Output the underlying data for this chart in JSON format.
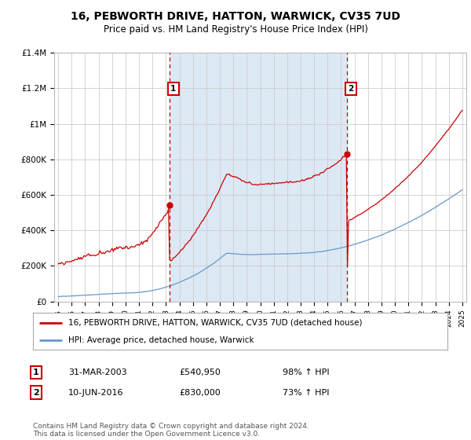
{
  "title": "16, PEBWORTH DRIVE, HATTON, WARWICK, CV35 7UD",
  "subtitle": "Price paid vs. HM Land Registry's House Price Index (HPI)",
  "title_fontsize": 10,
  "subtitle_fontsize": 8.5,
  "legend_line1": "16, PEBWORTH DRIVE, HATTON, WARWICK, CV35 7UD (detached house)",
  "legend_line2": "HPI: Average price, detached house, Warwick",
  "footer": "Contains HM Land Registry data © Crown copyright and database right 2024.\nThis data is licensed under the Open Government Licence v3.0.",
  "marker1_label": "1",
  "marker1_date": "31-MAR-2003",
  "marker1_price": "£540,950",
  "marker1_hpi": "98% ↑ HPI",
  "marker1_year": 2003.25,
  "marker1_value": 540950,
  "marker2_label": "2",
  "marker2_date": "10-JUN-2016",
  "marker2_price": "£830,000",
  "marker2_hpi": "73% ↑ HPI",
  "marker2_year": 2016.44,
  "marker2_value": 830000,
  "price_color": "#cc0000",
  "hpi_color": "#6699cc",
  "background_color": "#ffffff",
  "grid_color": "#cccccc",
  "shade_color": "#dde8f5",
  "ylim": [
    0,
    1400000
  ],
  "xlim": [
    1994.7,
    2025.3
  ],
  "yticks": [
    0,
    200000,
    400000,
    600000,
    800000,
    1000000,
    1200000,
    1400000
  ],
  "ytick_labels": [
    "£0",
    "£200K",
    "£400K",
    "£600K",
    "£800K",
    "£1M",
    "£1.2M",
    "£1.4M"
  ],
  "xticks": [
    1995,
    1996,
    1997,
    1998,
    1999,
    2000,
    2001,
    2002,
    2003,
    2004,
    2005,
    2006,
    2007,
    2008,
    2009,
    2010,
    2011,
    2012,
    2013,
    2014,
    2015,
    2016,
    2017,
    2018,
    2019,
    2020,
    2021,
    2022,
    2023,
    2024,
    2025
  ]
}
